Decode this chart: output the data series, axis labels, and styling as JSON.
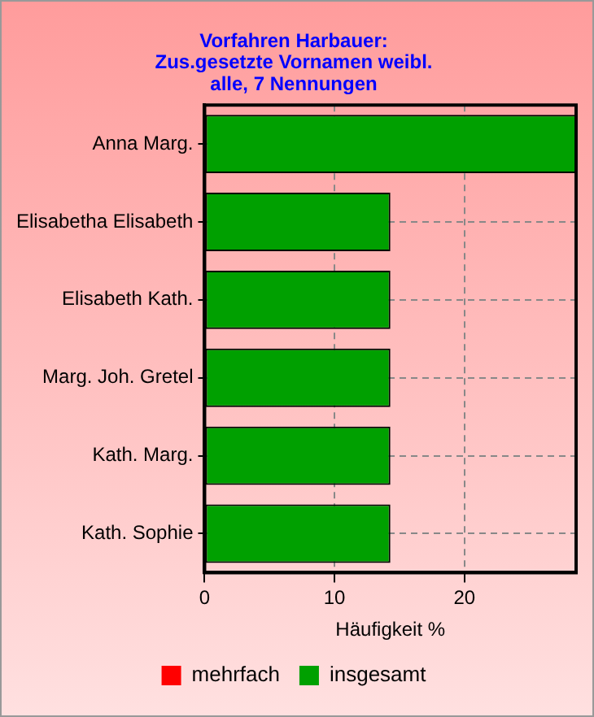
{
  "chart_data": {
    "type": "bar",
    "orientation": "horizontal",
    "stacked": true,
    "title": "Vorfahren Harbauer:\nZus.gesetzte Vornamen weibl.\nalle, 7 Nennungen",
    "xlabel": "Häufigkeit %",
    "categories": [
      "Anna Marg.",
      "Elisabetha Elisabeth",
      "Elisabeth Kath.",
      "Marg. Joh. Gretel",
      "Kath. Marg.",
      "Kath. Sophie"
    ],
    "series": [
      {
        "name": "mehrfach",
        "color": "#ff0000",
        "values": [
          0,
          0,
          0,
          0,
          0,
          0
        ]
      },
      {
        "name": "insgesamt",
        "color": "#00a000",
        "values": [
          28.6,
          14.3,
          14.3,
          14.3,
          14.3,
          14.3
        ]
      }
    ],
    "xlim": [
      0,
      28.6
    ],
    "xticks": [
      0,
      10,
      20
    ],
    "grid": true,
    "legend": "bottom"
  }
}
